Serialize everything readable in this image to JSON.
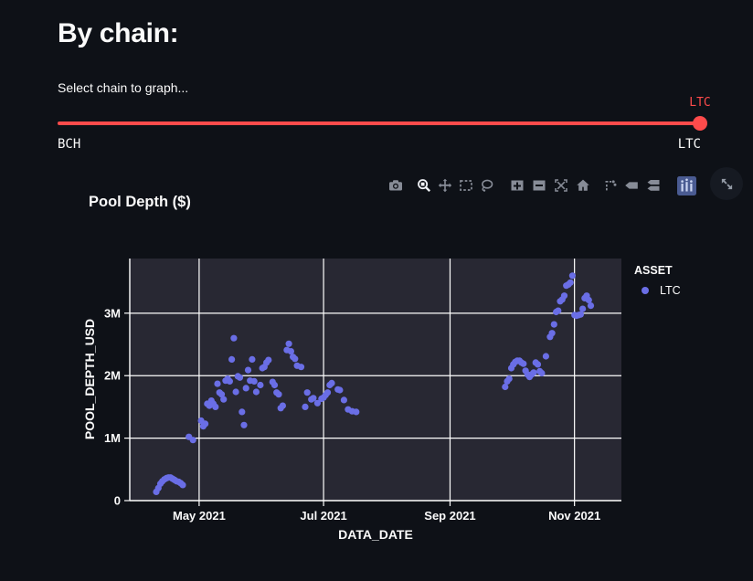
{
  "colors": {
    "page_background": "#0e1117",
    "text": "#fafafa",
    "accent_red": "#ff4b4b",
    "plot_background": "#282833",
    "gridline": "#ffffff",
    "point": "#6a6ee6",
    "icon_gray": "#878c97",
    "icon_active": "#f0f2f6",
    "plotly_logo_blue": "#4a5b92"
  },
  "header": {
    "title": "By chain:",
    "subtitle": "Select chain to graph..."
  },
  "slider": {
    "value_label": "LTC",
    "min_label": "BCH",
    "max_label": "LTC",
    "position_pct": 100
  },
  "toolbar": {
    "icons": [
      {
        "name": "camera-icon",
        "active": false
      },
      {
        "name": "zoom-icon",
        "active": true
      },
      {
        "name": "pan-icon",
        "active": false
      },
      {
        "name": "box-select-icon",
        "active": false
      },
      {
        "name": "lasso-select-icon",
        "active": false
      },
      {
        "name": "zoom-in-icon",
        "active": false
      },
      {
        "name": "zoom-out-icon",
        "active": false
      },
      {
        "name": "autoscale-icon",
        "active": false
      },
      {
        "name": "reset-axes-home-icon",
        "active": false
      },
      {
        "name": "spikelines-icon",
        "active": false
      },
      {
        "name": "hover-closest-icon",
        "active": false
      },
      {
        "name": "hover-compare-icon",
        "active": false
      },
      {
        "name": "plotly-logo-icon",
        "active": false
      },
      {
        "name": "fullscreen-expand-icon",
        "active": false
      }
    ]
  },
  "chart": {
    "title": "Pool Depth ($)",
    "legend": {
      "title": "ASSET",
      "items": [
        {
          "label": "LTC",
          "color": "#6a6ee6"
        }
      ]
    }
  },
  "chart_data": {
    "type": "scatter",
    "title": "Pool Depth ($)",
    "xlabel": "DATA_DATE",
    "ylabel": "POOL_DEPTH_USD",
    "x_range": [
      "2021-03-28",
      "2021-11-24"
    ],
    "y_range": [
      0,
      3.875
    ],
    "y_unit": "M USD",
    "grid": true,
    "legend_position": "top-right-outside",
    "x_ticks": [
      {
        "label": "May 2021",
        "date": "2021-05-01"
      },
      {
        "label": "Jul 2021",
        "date": "2021-07-01"
      },
      {
        "label": "Sep 2021",
        "date": "2021-09-01"
      },
      {
        "label": "Nov 2021",
        "date": "2021-11-01"
      }
    ],
    "y_ticks": [
      {
        "label": "0",
        "value": 0
      },
      {
        "label": "1M",
        "value": 1
      },
      {
        "label": "2M",
        "value": 2
      },
      {
        "label": "3M",
        "value": 3
      }
    ],
    "series": [
      {
        "name": "LTC",
        "color": "#6a6ee6",
        "marker_radius": 3.6,
        "points": [
          [
            "2021-04-10",
            0.14
          ],
          [
            "2021-04-11",
            0.2
          ],
          [
            "2021-04-12",
            0.27
          ],
          [
            "2021-04-13",
            0.31
          ],
          [
            "2021-04-14",
            0.34
          ],
          [
            "2021-04-15",
            0.36
          ],
          [
            "2021-04-16",
            0.37
          ],
          [
            "2021-04-17",
            0.37
          ],
          [
            "2021-04-18",
            0.35
          ],
          [
            "2021-04-19",
            0.33
          ],
          [
            "2021-04-20",
            0.31
          ],
          [
            "2021-04-21",
            0.3
          ],
          [
            "2021-04-22",
            0.28
          ],
          [
            "2021-04-23",
            0.25
          ],
          [
            "2021-04-26",
            1.02
          ],
          [
            "2021-04-28",
            0.97
          ],
          [
            "2021-05-02",
            1.28
          ],
          [
            "2021-05-03",
            1.19
          ],
          [
            "2021-05-04",
            1.23
          ],
          [
            "2021-05-05",
            1.55
          ],
          [
            "2021-05-06",
            1.52
          ],
          [
            "2021-05-07",
            1.6
          ],
          [
            "2021-05-08",
            1.55
          ],
          [
            "2021-05-09",
            1.5
          ],
          [
            "2021-05-10",
            1.87
          ],
          [
            "2021-05-11",
            1.73
          ],
          [
            "2021-05-12",
            1.7
          ],
          [
            "2021-05-13",
            1.62
          ],
          [
            "2021-05-14",
            1.92
          ],
          [
            "2021-05-15",
            1.95
          ],
          [
            "2021-05-16",
            1.91
          ],
          [
            "2021-05-17",
            2.26
          ],
          [
            "2021-05-18",
            2.6
          ],
          [
            "2021-05-19",
            1.74
          ],
          [
            "2021-05-20",
            1.99
          ],
          [
            "2021-05-21",
            1.97
          ],
          [
            "2021-05-22",
            1.42
          ],
          [
            "2021-05-23",
            1.21
          ],
          [
            "2021-05-24",
            1.8
          ],
          [
            "2021-05-25",
            2.09
          ],
          [
            "2021-05-26",
            1.92
          ],
          [
            "2021-05-27",
            2.26
          ],
          [
            "2021-05-28",
            1.91
          ],
          [
            "2021-05-29",
            1.74
          ],
          [
            "2021-05-31",
            1.85
          ],
          [
            "2021-06-01",
            2.12
          ],
          [
            "2021-06-02",
            2.14
          ],
          [
            "2021-06-03",
            2.21
          ],
          [
            "2021-06-04",
            2.25
          ],
          [
            "2021-06-06",
            1.9
          ],
          [
            "2021-06-07",
            1.85
          ],
          [
            "2021-06-08",
            1.73
          ],
          [
            "2021-06-09",
            1.7
          ],
          [
            "2021-06-10",
            1.48
          ],
          [
            "2021-06-11",
            1.52
          ],
          [
            "2021-06-13",
            2.41
          ],
          [
            "2021-06-14",
            2.51
          ],
          [
            "2021-06-15",
            2.39
          ],
          [
            "2021-06-16",
            2.3
          ],
          [
            "2021-06-17",
            2.27
          ],
          [
            "2021-06-18",
            2.16
          ],
          [
            "2021-06-20",
            2.14
          ],
          [
            "2021-06-22",
            1.5
          ],
          [
            "2021-06-23",
            1.73
          ],
          [
            "2021-06-25",
            1.62
          ],
          [
            "2021-06-26",
            1.64
          ],
          [
            "2021-06-28",
            1.56
          ],
          [
            "2021-06-30",
            1.63
          ],
          [
            "2021-07-01",
            1.65
          ],
          [
            "2021-07-02",
            1.69
          ],
          [
            "2021-07-03",
            1.73
          ],
          [
            "2021-07-04",
            1.85
          ],
          [
            "2021-07-05",
            1.88
          ],
          [
            "2021-07-08",
            1.78
          ],
          [
            "2021-07-09",
            1.77
          ],
          [
            "2021-07-11",
            1.61
          ],
          [
            "2021-07-13",
            1.46
          ],
          [
            "2021-07-15",
            1.43
          ],
          [
            "2021-07-17",
            1.42
          ],
          [
            "2021-09-28",
            1.82
          ],
          [
            "2021-09-29",
            1.91
          ],
          [
            "2021-09-30",
            1.95
          ],
          [
            "2021-10-01",
            2.12
          ],
          [
            "2021-10-02",
            2.18
          ],
          [
            "2021-10-03",
            2.22
          ],
          [
            "2021-10-04",
            2.24
          ],
          [
            "2021-10-05",
            2.24
          ],
          [
            "2021-10-06",
            2.21
          ],
          [
            "2021-10-07",
            2.19
          ],
          [
            "2021-10-08",
            2.08
          ],
          [
            "2021-10-09",
            2.02
          ],
          [
            "2021-10-10",
            1.98
          ],
          [
            "2021-10-11",
            2.02
          ],
          [
            "2021-10-12",
            2.05
          ],
          [
            "2021-10-13",
            2.21
          ],
          [
            "2021-10-14",
            2.18
          ],
          [
            "2021-10-15",
            2.07
          ],
          [
            "2021-10-16",
            2.04
          ],
          [
            "2021-10-18",
            2.31
          ],
          [
            "2021-10-20",
            2.62
          ],
          [
            "2021-10-21",
            2.68
          ],
          [
            "2021-10-22",
            2.82
          ],
          [
            "2021-10-23",
            3.02
          ],
          [
            "2021-10-24",
            3.04
          ],
          [
            "2021-10-25",
            3.19
          ],
          [
            "2021-10-26",
            3.22
          ],
          [
            "2021-10-27",
            3.28
          ],
          [
            "2021-10-28",
            3.44
          ],
          [
            "2021-10-29",
            3.46
          ],
          [
            "2021-10-30",
            3.49
          ],
          [
            "2021-10-31",
            3.6
          ],
          [
            "2021-11-01",
            2.97
          ],
          [
            "2021-11-02",
            2.96
          ],
          [
            "2021-11-03",
            2.97
          ],
          [
            "2021-11-04",
            2.98
          ],
          [
            "2021-11-05",
            3.07
          ],
          [
            "2021-11-06",
            3.24
          ],
          [
            "2021-11-07",
            3.28
          ],
          [
            "2021-11-08",
            3.21
          ],
          [
            "2021-11-09",
            3.12
          ]
        ]
      }
    ]
  }
}
